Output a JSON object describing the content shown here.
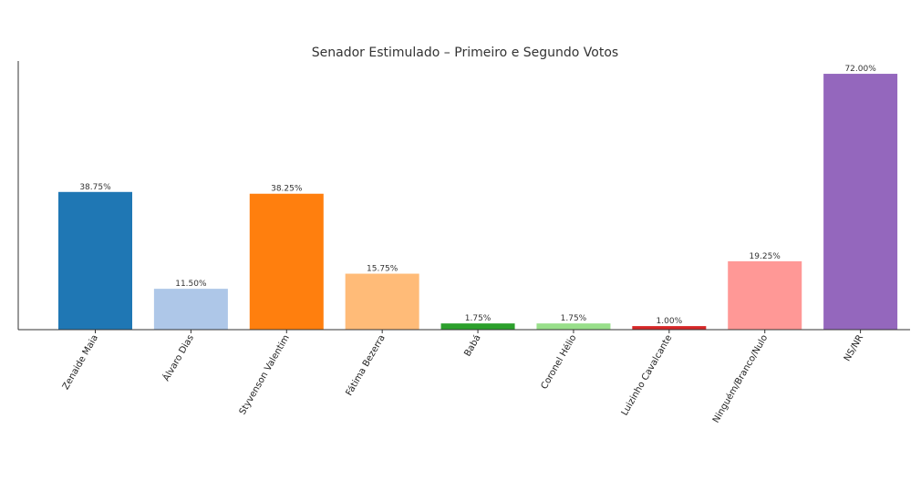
{
  "chart_data": {
    "type": "bar",
    "title": "Senador Estimulado – Primeiro e Segundo Votos",
    "xlabel": "",
    "ylabel": "",
    "ylim": [
      0,
      75.6
    ],
    "grid": false,
    "categories": [
      "Zenaide Maia",
      "Álvaro Dias",
      "Styvenson Valentim",
      "Fátima Bezerra",
      "Babá",
      "Coronel Hélio",
      "Luizinho Cavalcante",
      "Ninguém/Branco/Nulo",
      "NS/NR"
    ],
    "values": [
      38.75,
      11.5,
      38.25,
      15.75,
      1.75,
      1.75,
      1.0,
      19.25,
      72.0
    ],
    "value_labels": [
      "38.75%",
      "11.50%",
      "38.25%",
      "15.75%",
      "1.75%",
      "1.75%",
      "1.00%",
      "19.25%",
      "72.00%"
    ],
    "colors": [
      "#1f77b4",
      "#aec7e8",
      "#ff7f0e",
      "#ffbb78",
      "#2ca02c",
      "#98df8a",
      "#d62728",
      "#ff9896",
      "#9467bd"
    ]
  }
}
